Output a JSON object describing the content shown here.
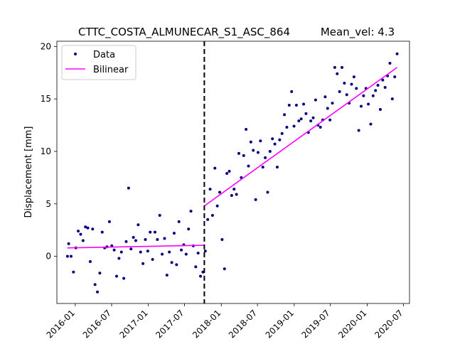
{
  "chart_data": {
    "type": "scatter",
    "title_left": "CTTC_COSTA_ALMUNECAR_S1_ASC_864",
    "title_right": "Mean_vel: 4.3",
    "xlabel": "",
    "ylabel": "Displacement [mm]",
    "x_axis_type": "date",
    "xlim": [
      "2015-10-01",
      "2020-07-31"
    ],
    "ylim": [
      -4.5,
      20.5
    ],
    "x_ticks": [
      "2016-01",
      "2016-07",
      "2017-01",
      "2017-07",
      "2018-01",
      "2018-07",
      "2019-01",
      "2019-07",
      "2020-01",
      "2020-07"
    ],
    "y_ticks": [
      0,
      5,
      10,
      15,
      20
    ],
    "grid": false,
    "legend_position": "top-left",
    "breakpoint_date": "2017-10-08",
    "colors": {
      "data": "#000080",
      "fit": "#ff00ff",
      "breakpoint": "#000000"
    },
    "series": [
      {
        "name": "Data",
        "kind": "points",
        "x": [
          "2015-11-23",
          "2015-11-29",
          "2015-12-11",
          "2015-12-23",
          "2016-01-04",
          "2016-01-16",
          "2016-01-28",
          "2016-02-09",
          "2016-02-21",
          "2016-03-04",
          "2016-03-16",
          "2016-03-28",
          "2016-04-09",
          "2016-04-21",
          "2016-05-03",
          "2016-05-15",
          "2016-05-27",
          "2016-06-08",
          "2016-06-20",
          "2016-07-02",
          "2016-07-14",
          "2016-07-26",
          "2016-08-07",
          "2016-08-19",
          "2016-08-31",
          "2016-09-12",
          "2016-09-24",
          "2016-10-06",
          "2016-10-18",
          "2016-10-30",
          "2016-11-11",
          "2016-11-23",
          "2016-12-05",
          "2016-12-17",
          "2016-12-29",
          "2017-01-10",
          "2017-01-22",
          "2017-02-03",
          "2017-02-15",
          "2017-02-27",
          "2017-03-11",
          "2017-03-23",
          "2017-04-04",
          "2017-04-16",
          "2017-04-28",
          "2017-05-10",
          "2017-05-22",
          "2017-06-03",
          "2017-06-15",
          "2017-06-27",
          "2017-07-09",
          "2017-07-21",
          "2017-08-02",
          "2017-08-14",
          "2017-08-26",
          "2017-09-07",
          "2017-09-19",
          "2017-10-01",
          "2017-10-13",
          "2017-10-25",
          "2017-11-06",
          "2017-11-18",
          "2017-11-30",
          "2017-12-12",
          "2017-12-24",
          "2018-01-05",
          "2018-01-17",
          "2018-01-29",
          "2018-02-10",
          "2018-02-22",
          "2018-03-06",
          "2018-03-18",
          "2018-03-30",
          "2018-04-11",
          "2018-04-23",
          "2018-05-05",
          "2018-05-17",
          "2018-05-29",
          "2018-06-10",
          "2018-06-22",
          "2018-07-04",
          "2018-07-16",
          "2018-07-28",
          "2018-08-09",
          "2018-08-21",
          "2018-09-02",
          "2018-09-14",
          "2018-09-26",
          "2018-10-08",
          "2018-10-20",
          "2018-11-01",
          "2018-11-13",
          "2018-11-25",
          "2018-12-07",
          "2018-12-19",
          "2018-12-31",
          "2019-01-12",
          "2019-01-24",
          "2019-02-05",
          "2019-02-17",
          "2019-03-01",
          "2019-03-13",
          "2019-03-25",
          "2019-04-06",
          "2019-04-18",
          "2019-04-30",
          "2019-05-12",
          "2019-05-24",
          "2019-06-05",
          "2019-06-17",
          "2019-06-29",
          "2019-07-11",
          "2019-07-23",
          "2019-08-04",
          "2019-08-16",
          "2019-08-28",
          "2019-09-09",
          "2019-09-21",
          "2019-10-03",
          "2019-10-15",
          "2019-10-27",
          "2019-11-08",
          "2019-11-20",
          "2019-12-02",
          "2019-12-14",
          "2019-12-26",
          "2020-01-07",
          "2020-01-19",
          "2020-01-31",
          "2020-02-12",
          "2020-02-24",
          "2020-03-07",
          "2020-03-19",
          "2020-03-31",
          "2020-04-12",
          "2020-04-24",
          "2020-05-06",
          "2020-05-18",
          "2020-05-30"
        ],
        "y": [
          0.0,
          1.2,
          0.0,
          -1.5,
          0.8,
          2.4,
          2.1,
          1.5,
          2.8,
          2.7,
          -0.5,
          2.6,
          -2.7,
          -3.4,
          -1.6,
          2.3,
          0.8,
          0.9,
          3.3,
          1.0,
          0.6,
          -1.9,
          -0.2,
          0.4,
          -2.1,
          1.4,
          6.5,
          0.7,
          1.8,
          1.5,
          3.0,
          0.4,
          -0.7,
          1.6,
          0.5,
          2.3,
          -0.3,
          2.3,
          1.6,
          3.9,
          0.2,
          1.7,
          -1.8,
          0.4,
          -0.6,
          2.2,
          -0.8,
          3.3,
          0.6,
          1.1,
          0.2,
          2.6,
          4.3,
          1.0,
          -1.0,
          0.3,
          -1.9,
          -1.5,
          0.5,
          3.5,
          6.4,
          3.9,
          8.4,
          4.8,
          6.1,
          1.6,
          -1.2,
          7.9,
          8.1,
          5.8,
          6.4,
          5.9,
          9.8,
          7.5,
          9.6,
          12.1,
          8.6,
          10.9,
          10.1,
          5.4,
          9.9,
          11.0,
          8.5,
          9.4,
          6.1,
          10.0,
          11.2,
          10.7,
          8.5,
          11.1,
          11.7,
          13.5,
          12.3,
          14.4,
          15.7,
          12.4,
          14.4,
          12.9,
          13.1,
          14.5,
          13.6,
          11.8,
          12.9,
          13.2,
          14.9,
          12.5,
          12.3,
          13.0,
          15.2,
          14.1,
          13.0,
          14.6,
          18.0,
          17.4,
          15.7,
          18.0,
          16.5,
          15.4,
          14.6,
          16.4,
          17.1,
          16.0,
          12.0,
          14.3,
          15.3,
          16.0,
          14.5,
          12.6,
          15.3,
          15.8,
          16.3,
          14.0,
          16.8,
          16.1,
          17.2,
          18.4,
          15.0,
          17.1,
          19.3
        ]
      },
      {
        "name": "Bilinear",
        "kind": "line",
        "segments": [
          {
            "x": [
              "2015-11-23",
              "2017-10-08"
            ],
            "y": [
              0.8,
              1.05
            ]
          },
          {
            "x": [
              "2017-10-08",
              "2020-05-30"
            ],
            "y": [
              4.8,
              18.0
            ]
          }
        ]
      }
    ]
  }
}
